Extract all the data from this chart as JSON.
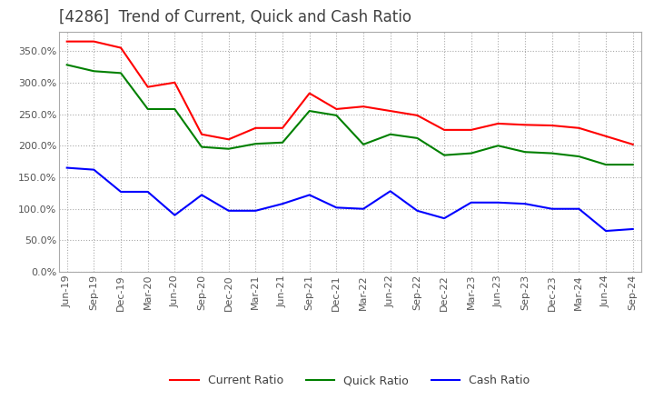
{
  "title": "[4286]  Trend of Current, Quick and Cash Ratio",
  "x_labels": [
    "Jun-19",
    "Sep-19",
    "Dec-19",
    "Mar-20",
    "Jun-20",
    "Sep-20",
    "Dec-20",
    "Mar-21",
    "Jun-21",
    "Sep-21",
    "Dec-21",
    "Mar-22",
    "Jun-22",
    "Sep-22",
    "Dec-22",
    "Mar-23",
    "Jun-23",
    "Sep-23",
    "Dec-23",
    "Mar-24",
    "Jun-24",
    "Sep-24"
  ],
  "current_ratio": [
    365,
    365,
    355,
    293,
    300,
    218,
    210,
    228,
    228,
    283,
    258,
    262,
    255,
    248,
    225,
    225,
    235,
    233,
    232,
    228,
    215,
    202
  ],
  "quick_ratio": [
    328,
    318,
    315,
    258,
    258,
    198,
    195,
    203,
    205,
    255,
    248,
    202,
    218,
    212,
    185,
    188,
    200,
    190,
    188,
    183,
    170,
    170
  ],
  "cash_ratio": [
    165,
    162,
    127,
    127,
    90,
    122,
    97,
    97,
    108,
    122,
    102,
    100,
    128,
    97,
    85,
    110,
    110,
    108,
    100,
    100,
    65,
    68
  ],
  "current_color": "#ff0000",
  "quick_color": "#008000",
  "cash_color": "#0000ff",
  "ylim": [
    0,
    380
  ],
  "yticks": [
    0,
    50,
    100,
    150,
    200,
    250,
    300,
    350
  ],
  "background_color": "#ffffff",
  "grid_color": "#aaaaaa",
  "title_color": "#404040",
  "title_fontsize": 12,
  "legend_fontsize": 9,
  "axis_fontsize": 8
}
